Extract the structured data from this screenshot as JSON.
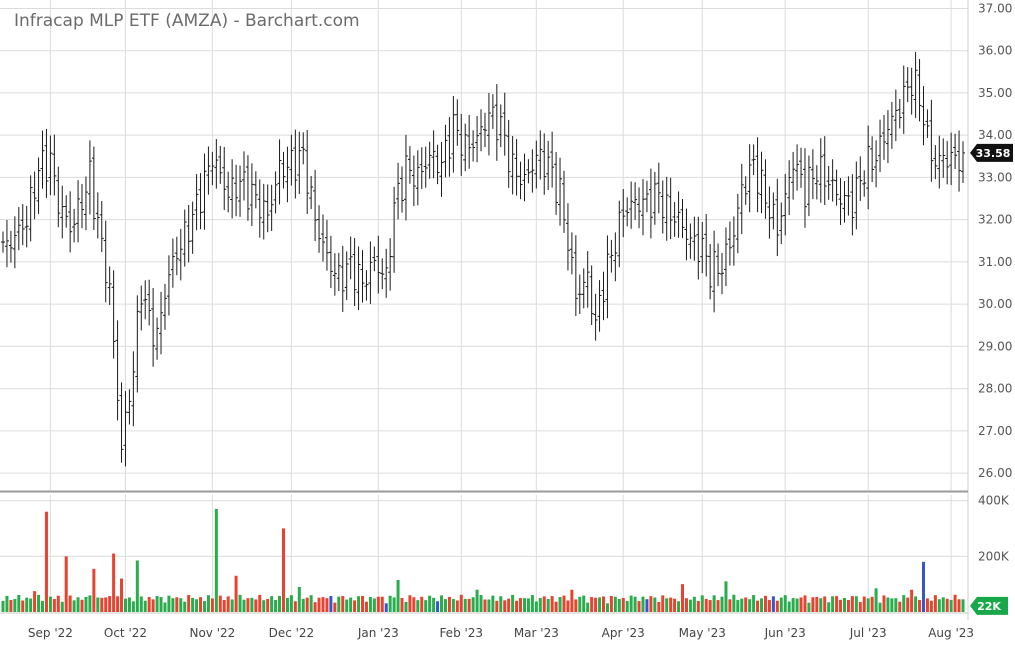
{
  "header": {
    "title": "Infracap MLP ETF (AMZA) - Barchart.com"
  },
  "chart_data": [
    {
      "type": "ohlc",
      "title": "Infracap MLP ETF (AMZA) - Barchart.com",
      "y_ticks": [
        "26.00",
        "27.00",
        "28.00",
        "29.00",
        "30.00",
        "31.00",
        "32.00",
        "33.00",
        "34.00",
        "35.00",
        "36.00",
        "37.00"
      ],
      "ylim": [
        25.6,
        37.2
      ],
      "x_labels": [
        "Sep '22",
        "Oct '22",
        "Nov '22",
        "Dec '22",
        "Jan '23",
        "Feb '23",
        "Mar '23",
        "Apr '23",
        "May '23",
        "Jun '23",
        "Jul '23",
        "Aug '23"
      ],
      "x_label_index": [
        12,
        31,
        53,
        73,
        95,
        116,
        135,
        157,
        177,
        198,
        219,
        240
      ],
      "n_bars": 244,
      "grid": true,
      "last_price": 33.58,
      "last_price_label": "33.58",
      "anchor_closes": [
        [
          0,
          31.3
        ],
        [
          3,
          31.6
        ],
        [
          6,
          32.0
        ],
        [
          9,
          33.2
        ],
        [
          12,
          33.4
        ],
        [
          14,
          32.4
        ],
        [
          17,
          31.8
        ],
        [
          19,
          32.2
        ],
        [
          22,
          33.0
        ],
        [
          24,
          31.9
        ],
        [
          27,
          30.3
        ],
        [
          30,
          26.6
        ],
        [
          33,
          28.5
        ],
        [
          35,
          30.4
        ],
        [
          37,
          29.6
        ],
        [
          39,
          29.2
        ],
        [
          41,
          30.3
        ],
        [
          43,
          31.0
        ],
        [
          46,
          31.6
        ],
        [
          49,
          32.3
        ],
        [
          53,
          33.5
        ],
        [
          57,
          32.6
        ],
        [
          60,
          32.9
        ],
        [
          63,
          32.6
        ],
        [
          67,
          32.1
        ],
        [
          70,
          33.2
        ],
        [
          73,
          33.3
        ],
        [
          76,
          33.5
        ],
        [
          79,
          32.0
        ],
        [
          82,
          31.1
        ],
        [
          85,
          30.6
        ],
        [
          88,
          30.9
        ],
        [
          91,
          30.5
        ],
        [
          94,
          31.0
        ],
        [
          97,
          30.6
        ],
        [
          99,
          32.3
        ],
        [
          102,
          33.2
        ],
        [
          105,
          33.0
        ],
        [
          108,
          33.5
        ],
        [
          111,
          33.3
        ],
        [
          114,
          34.2
        ],
        [
          117,
          33.7
        ],
        [
          120,
          33.9
        ],
        [
          123,
          34.5
        ],
        [
          126,
          34.2
        ],
        [
          129,
          33.2
        ],
        [
          132,
          32.9
        ],
        [
          135,
          33.5
        ],
        [
          138,
          33.3
        ],
        [
          141,
          32.6
        ],
        [
          143,
          31.5
        ],
        [
          145,
          30.2
        ],
        [
          148,
          30.6
        ],
        [
          150,
          29.5
        ],
        [
          152,
          30.5
        ],
        [
          155,
          31.5
        ],
        [
          157,
          32.2
        ],
        [
          160,
          32.4
        ],
        [
          163,
          32.4
        ],
        [
          166,
          32.6
        ],
        [
          168,
          32.2
        ],
        [
          171,
          32.0
        ],
        [
          174,
          31.5
        ],
        [
          177,
          31.3
        ],
        [
          179,
          30.8
        ],
        [
          182,
          30.9
        ],
        [
          185,
          31.7
        ],
        [
          187,
          32.7
        ],
        [
          190,
          33.3
        ],
        [
          193,
          32.5
        ],
        [
          196,
          31.8
        ],
        [
          198,
          32.5
        ],
        [
          200,
          33.4
        ],
        [
          203,
          32.7
        ],
        [
          206,
          33.2
        ],
        [
          209,
          32.9
        ],
        [
          212,
          32.5
        ],
        [
          215,
          32.4
        ],
        [
          218,
          33.2
        ],
        [
          221,
          33.5
        ],
        [
          224,
          34.2
        ],
        [
          226,
          34.5
        ],
        [
          228,
          34.9
        ],
        [
          230,
          35.3
        ],
        [
          232,
          34.9
        ],
        [
          234,
          33.9
        ],
        [
          236,
          33.3
        ],
        [
          238,
          33.5
        ],
        [
          240,
          33.4
        ],
        [
          243,
          33.58
        ]
      ]
    },
    {
      "type": "bar",
      "title": "",
      "y_ticks": [
        "200K",
        "400K"
      ],
      "ylim": [
        0,
        420000
      ],
      "last_volume": 22000,
      "last_volume_label": "22K",
      "spikes": [
        [
          8,
          75000
        ],
        [
          11,
          360000
        ],
        [
          16,
          200000
        ],
        [
          23,
          155000
        ],
        [
          28,
          210000
        ],
        [
          30,
          120000
        ],
        [
          34,
          185000
        ],
        [
          54,
          370000
        ],
        [
          59,
          130000
        ],
        [
          71,
          300000
        ],
        [
          75,
          90000
        ],
        [
          100,
          115000
        ],
        [
          120,
          80000
        ],
        [
          144,
          80000
        ],
        [
          172,
          100000
        ],
        [
          183,
          110000
        ],
        [
          221,
          85000
        ],
        [
          230,
          80000
        ],
        [
          233,
          180000
        ]
      ],
      "highlight_bars": [
        83,
        97,
        110,
        163,
        195,
        233
      ],
      "colors": {
        "up": "#27ad4b",
        "down": "#e8432e",
        "neutral": "#3557c9",
        "ohlc": "#1a1a1a"
      }
    }
  ]
}
